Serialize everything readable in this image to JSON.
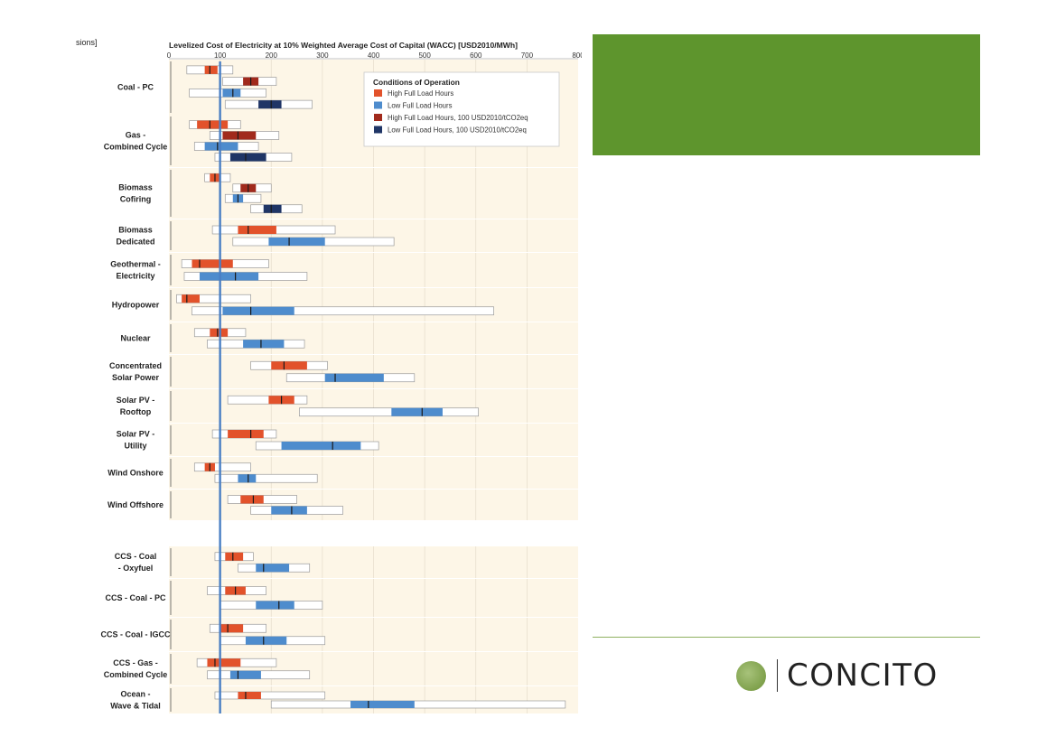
{
  "header_fragment": "sions]",
  "brand": {
    "name": "CONCITO",
    "green": "#5e952d"
  },
  "colors": {
    "high": "#e2522b",
    "low": "#4e8ccd",
    "high_co2": "#a12a1c",
    "low_co2": "#1f3566",
    "panel_bg": "#fdf6e7",
    "ref_line": "#4a7fc4"
  },
  "chart_data": {
    "type": "range-bar",
    "title": "Levelized Cost of Electricity at 10% Weighted Average Cost of Capital (WACC) [USD2010/MWh]",
    "xlim": [
      0,
      800
    ],
    "xticks": [
      "0",
      "100",
      "200",
      "300",
      "400",
      "500",
      "600",
      "700",
      "800"
    ],
    "reference_line": 100,
    "legend": {
      "title": "Conditions of Operation",
      "position": "top-right",
      "entries": [
        "High Full Load Hours",
        "Low Full Load Hours",
        "High Full Load Hours, 100 USD2010/tCO2eq",
        "Low Full Load Hours, 100 USD2010/tCO2eq"
      ]
    },
    "groups": [
      {
        "label": [
          "Coal - PC"
        ],
        "bars": [
          {
            "c": "high",
            "min": 35,
            "max": 125,
            "p25": 70,
            "p75": 95,
            "med": 80
          },
          {
            "c": "high_co2",
            "min": 105,
            "max": 210,
            "p25": 145,
            "p75": 175,
            "med": 160
          },
          {
            "c": "low",
            "min": 40,
            "max": 190,
            "p25": 105,
            "p75": 140,
            "med": 125
          },
          {
            "c": "low_co2",
            "min": 110,
            "max": 280,
            "p25": 175,
            "p75": 220,
            "med": 200
          }
        ]
      },
      {
        "label": [
          "Gas -",
          "Combined Cycle"
        ],
        "bars": [
          {
            "c": "high",
            "min": 40,
            "max": 140,
            "p25": 55,
            "p75": 115,
            "med": 80
          },
          {
            "c": "high_co2",
            "min": 80,
            "max": 215,
            "p25": 105,
            "p75": 170,
            "med": 135
          },
          {
            "c": "low",
            "min": 50,
            "max": 175,
            "p25": 70,
            "p75": 135,
            "med": 95
          },
          {
            "c": "low_co2",
            "min": 90,
            "max": 240,
            "p25": 120,
            "p75": 190,
            "med": 150
          }
        ]
      },
      {
        "label": [
          "Biomass",
          "Cofiring"
        ],
        "bars": [
          {
            "c": "high",
            "min": 70,
            "max": 120,
            "p25": 80,
            "p75": 100,
            "med": 90
          },
          {
            "c": "high_co2",
            "min": 125,
            "max": 200,
            "p25": 140,
            "p75": 170,
            "med": 155
          },
          {
            "c": "low",
            "min": 110,
            "max": 180,
            "p25": 125,
            "p75": 145,
            "med": 135
          },
          {
            "c": "low_co2",
            "min": 160,
            "max": 260,
            "p25": 185,
            "p75": 220,
            "med": 200
          }
        ]
      },
      {
        "label": [
          "Biomass",
          "Dedicated"
        ],
        "bars": [
          {
            "c": "high",
            "min": 85,
            "max": 325,
            "p25": 135,
            "p75": 210,
            "med": 155
          },
          {
            "c": "low",
            "min": 125,
            "max": 440,
            "p25": 195,
            "p75": 305,
            "med": 235
          }
        ]
      },
      {
        "label": [
          "Geothermal -",
          "Electricity"
        ],
        "bars": [
          {
            "c": "high",
            "min": 25,
            "max": 195,
            "p25": 45,
            "p75": 125,
            "med": 60
          },
          {
            "c": "low",
            "min": 30,
            "max": 270,
            "p25": 60,
            "p75": 175,
            "med": 130
          }
        ]
      },
      {
        "label": [
          "Hydropower"
        ],
        "bars": [
          {
            "c": "high",
            "min": 15,
            "max": 160,
            "p25": 25,
            "p75": 60,
            "med": 35
          },
          {
            "c": "low",
            "min": 45,
            "max": 635,
            "p25": 105,
            "p75": 245,
            "med": 160
          }
        ]
      },
      {
        "label": [
          "Nuclear"
        ],
        "bars": [
          {
            "c": "high",
            "min": 50,
            "max": 150,
            "p25": 80,
            "p75": 115,
            "med": 95
          },
          {
            "c": "low",
            "min": 75,
            "max": 265,
            "p25": 145,
            "p75": 225,
            "med": 180
          }
        ]
      },
      {
        "label": [
          "Concentrated",
          "Solar Power"
        ],
        "bars": [
          {
            "c": "high",
            "min": 160,
            "max": 310,
            "p25": 200,
            "p75": 270,
            "med": 225
          },
          {
            "c": "low",
            "min": 230,
            "max": 480,
            "p25": 305,
            "p75": 420,
            "med": 325
          }
        ]
      },
      {
        "label": [
          "Solar PV -",
          "Rooftop"
        ],
        "bars": [
          {
            "c": "high",
            "min": 115,
            "max": 270,
            "p25": 195,
            "p75": 245,
            "med": 220
          },
          {
            "c": "low",
            "min": 255,
            "max": 605,
            "p25": 435,
            "p75": 535,
            "med": 495
          }
        ]
      },
      {
        "label": [
          "Solar PV -",
          "Utility"
        ],
        "bars": [
          {
            "c": "high",
            "min": 85,
            "max": 210,
            "p25": 115,
            "p75": 185,
            "med": 160
          },
          {
            "c": "low",
            "min": 170,
            "max": 410,
            "p25": 220,
            "p75": 375,
            "med": 320
          }
        ]
      },
      {
        "label": [
          "Wind Onshore"
        ],
        "bars": [
          {
            "c": "high",
            "min": 50,
            "max": 160,
            "p25": 70,
            "p75": 90,
            "med": 80
          },
          {
            "c": "low",
            "min": 90,
            "max": 290,
            "p25": 135,
            "p75": 170,
            "med": 155
          }
        ]
      },
      {
        "label": [
          "Wind Offshore"
        ],
        "bars": [
          {
            "c": "high",
            "min": 115,
            "max": 250,
            "p25": 140,
            "p75": 185,
            "med": 165
          },
          {
            "c": "low",
            "min": 160,
            "max": 340,
            "p25": 200,
            "p75": 270,
            "med": 240
          }
        ]
      },
      {
        "label": [
          "CCS - Coal",
          "- Oxyfuel"
        ],
        "bars": [
          {
            "c": "high",
            "min": 90,
            "max": 165,
            "p25": 110,
            "p75": 145,
            "med": 125
          },
          {
            "c": "low",
            "min": 135,
            "max": 275,
            "p25": 170,
            "p75": 235,
            "med": 185
          }
        ]
      },
      {
        "label": [
          "CCS - Coal - PC"
        ],
        "bars": [
          {
            "c": "high",
            "min": 75,
            "max": 190,
            "p25": 110,
            "p75": 150,
            "med": 130
          },
          {
            "c": "low",
            "min": 100,
            "max": 300,
            "p25": 170,
            "p75": 245,
            "med": 215
          }
        ]
      },
      {
        "label": [
          "CCS - Coal - IGCC"
        ],
        "bars": [
          {
            "c": "high",
            "min": 80,
            "max": 190,
            "p25": 100,
            "p75": 145,
            "med": 115
          },
          {
            "c": "low",
            "min": 100,
            "max": 305,
            "p25": 150,
            "p75": 230,
            "med": 185
          }
        ]
      },
      {
        "label": [
          "CCS - Gas -",
          "Combined Cycle"
        ],
        "bars": [
          {
            "c": "high",
            "min": 55,
            "max": 210,
            "p25": 75,
            "p75": 140,
            "med": 90
          },
          {
            "c": "low",
            "min": 75,
            "max": 275,
            "p25": 120,
            "p75": 180,
            "med": 135
          }
        ]
      },
      {
        "label": [
          "Ocean -",
          "Wave & Tidal"
        ],
        "bars": [
          {
            "c": "high",
            "min": 90,
            "max": 305,
            "p25": 135,
            "p75": 180,
            "med": 150
          },
          {
            "c": "low",
            "min": 200,
            "max": 775,
            "p25": 355,
            "p75": 480,
            "med": 390
          }
        ]
      }
    ]
  }
}
